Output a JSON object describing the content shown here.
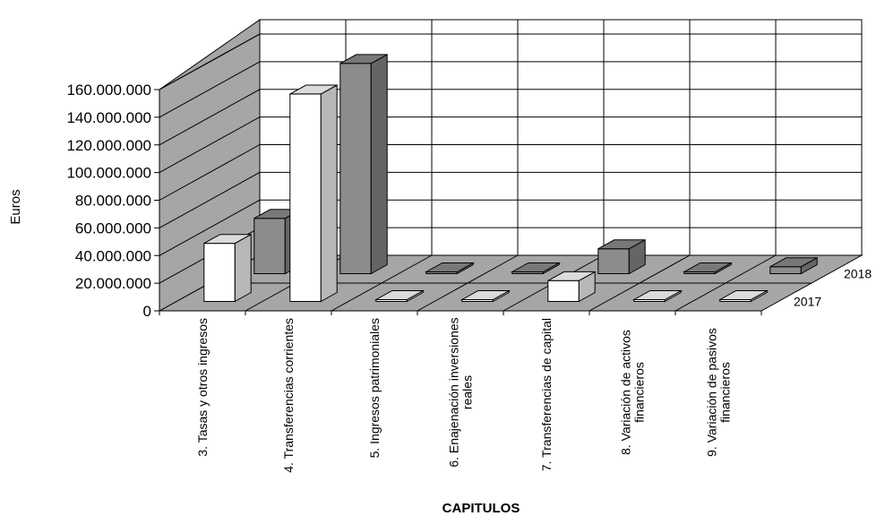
{
  "chart_data": {
    "type": "bar",
    "title": "",
    "xlabel": "CAPITULOS",
    "ylabel": "Euros",
    "ylim": [
      0,
      160000000
    ],
    "y_ticks": [
      "0",
      "20.000.000",
      "40.000.000",
      "60.000.000",
      "80.000.000",
      "100.000.000",
      "120.000.000",
      "140.000.000",
      "160.000.000"
    ],
    "categories": [
      "3. Tasas y otros ingresos",
      "4. Transferencias corrientes",
      "5. Ingresos patrimoniales",
      "6. Enajenación inversiones reales",
      "7. Transferencias de capital",
      "8. Variación de activos financieros",
      "9. Variación de pasivos financieros"
    ],
    "category_label_lines": [
      [
        "3. Tasas y otros ingresos"
      ],
      [
        "4. Transferencias corrientes"
      ],
      [
        "5. Ingresos patrimoniales"
      ],
      [
        "6. Enajenación inversiones",
        "reales"
      ],
      [
        "7. Transferencias de capital"
      ],
      [
        "8. Variación de activos",
        "financieros"
      ],
      [
        "9. Variación de pasivos",
        "financieros"
      ]
    ],
    "series": [
      {
        "name": "2017",
        "values": [
          42000000,
          150000000,
          0,
          0,
          15000000,
          0,
          0
        ]
      },
      {
        "name": "2018",
        "values": [
          40000000,
          152000000,
          0,
          0,
          18000000,
          0,
          5000000
        ]
      }
    ],
    "grid": true,
    "colors": {
      "series_2017": "#ffffff",
      "series_2018": "#8c8c8c",
      "walls": "#a6a6a6",
      "floor": "#a6a6a6",
      "back_wall": "#ffffff"
    }
  }
}
